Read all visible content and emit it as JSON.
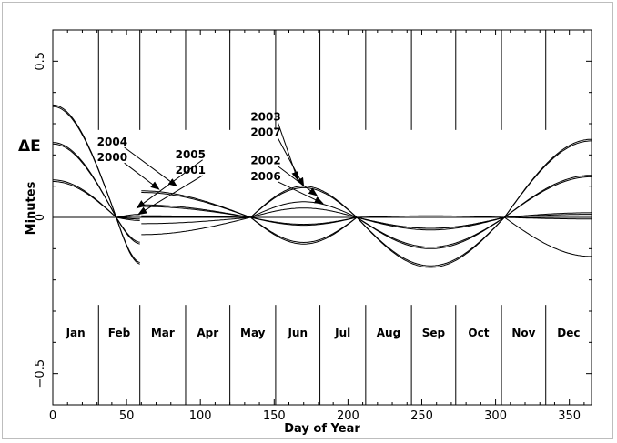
{
  "chart_data": {
    "type": "line",
    "title": "",
    "xlabel": "Day of Year",
    "ylabel": "Minutes",
    "series_label": "ΔE",
    "xlim": [
      0,
      365
    ],
    "ylim": [
      -0.6,
      0.6
    ],
    "x_ticks": [
      0,
      50,
      100,
      150,
      200,
      250,
      300,
      350
    ],
    "y_ticks": [
      -0.5,
      0,
      0.5
    ],
    "y_tick_labels": [
      "−0.5",
      "0",
      "0.5"
    ],
    "grid": false,
    "months": [
      {
        "label": "Jan",
        "start": 0
      },
      {
        "label": "Feb",
        "start": 31
      },
      {
        "label": "Mar",
        "start": 59
      },
      {
        "label": "Apr",
        "start": 90
      },
      {
        "label": "May",
        "start": 120
      },
      {
        "label": "Jun",
        "start": 151
      },
      {
        "label": "Jul",
        "start": 181
      },
      {
        "label": "Aug",
        "start": 212
      },
      {
        "label": "Sep",
        "start": 243
      },
      {
        "label": "Oct",
        "start": 273
      },
      {
        "label": "Nov",
        "start": 304
      },
      {
        "label": "Dec",
        "start": 334
      }
    ],
    "series": [
      {
        "amplitudes": [
          0.36,
          -0.15,
          0.085,
          -0.085,
          0.115,
          -0.16,
          0.25
        ]
      },
      {
        "amplitudes": [
          0.355,
          -0.145,
          0.08,
          -0.08,
          0.11,
          -0.155,
          0.245
        ]
      },
      {
        "amplitudes": [
          0.24,
          -0.085,
          0.04,
          -0.025,
          0.075,
          -0.1,
          0.135
        ]
      },
      {
        "amplitudes": [
          0.235,
          -0.08,
          0.035,
          -0.022,
          0.072,
          -0.095,
          0.13
        ]
      },
      {
        "amplitudes": [
          0.12,
          -0.01,
          0.005,
          0.1,
          0.01,
          -0.04,
          0.015
        ]
      },
      {
        "amplitudes": [
          0.115,
          -0.005,
          0.002,
          0.095,
          0.008,
          -0.035,
          0.01
        ]
      },
      {
        "amplitudes": [
          0.0,
          0.01,
          -0.02,
          0.05,
          0.005,
          0.005,
          -0.005
        ]
      },
      {
        "amplitudes": [
          0.0,
          0.005,
          -0.055,
          0.03,
          -0.045,
          -0.035,
          -0.125
        ]
      }
    ],
    "annotations": [
      {
        "text": "2004",
        "x": 30,
        "y": 0.23,
        "arrow_to": [
          84,
          0.1
        ]
      },
      {
        "text": "2000",
        "x": 30,
        "y": 0.18,
        "arrow_to": [
          72,
          0.09
        ]
      },
      {
        "text": "2005",
        "x": 83,
        "y": 0.19,
        "arrow_to": [
          57,
          0.03
        ]
      },
      {
        "text": "2001",
        "x": 83,
        "y": 0.14,
        "arrow_to": [
          58,
          0.01
        ]
      },
      {
        "text": "2003",
        "x": 134,
        "y": 0.31,
        "arrow_to": [
          166,
          0.12
        ]
      },
      {
        "text": "2007",
        "x": 134,
        "y": 0.26,
        "arrow_to": [
          170,
          0.1
        ]
      },
      {
        "text": "2002",
        "x": 134,
        "y": 0.17,
        "arrow_to": [
          179,
          0.07
        ]
      },
      {
        "text": "2006",
        "x": 134,
        "y": 0.12,
        "arrow_to": [
          183,
          0.045
        ]
      }
    ],
    "segments": [
      [
        0,
        60,
        0,
        0.36,
        0,
        0
      ],
      [
        60,
        134,
        0.06,
        0,
        0,
        0
      ]
    ]
  }
}
